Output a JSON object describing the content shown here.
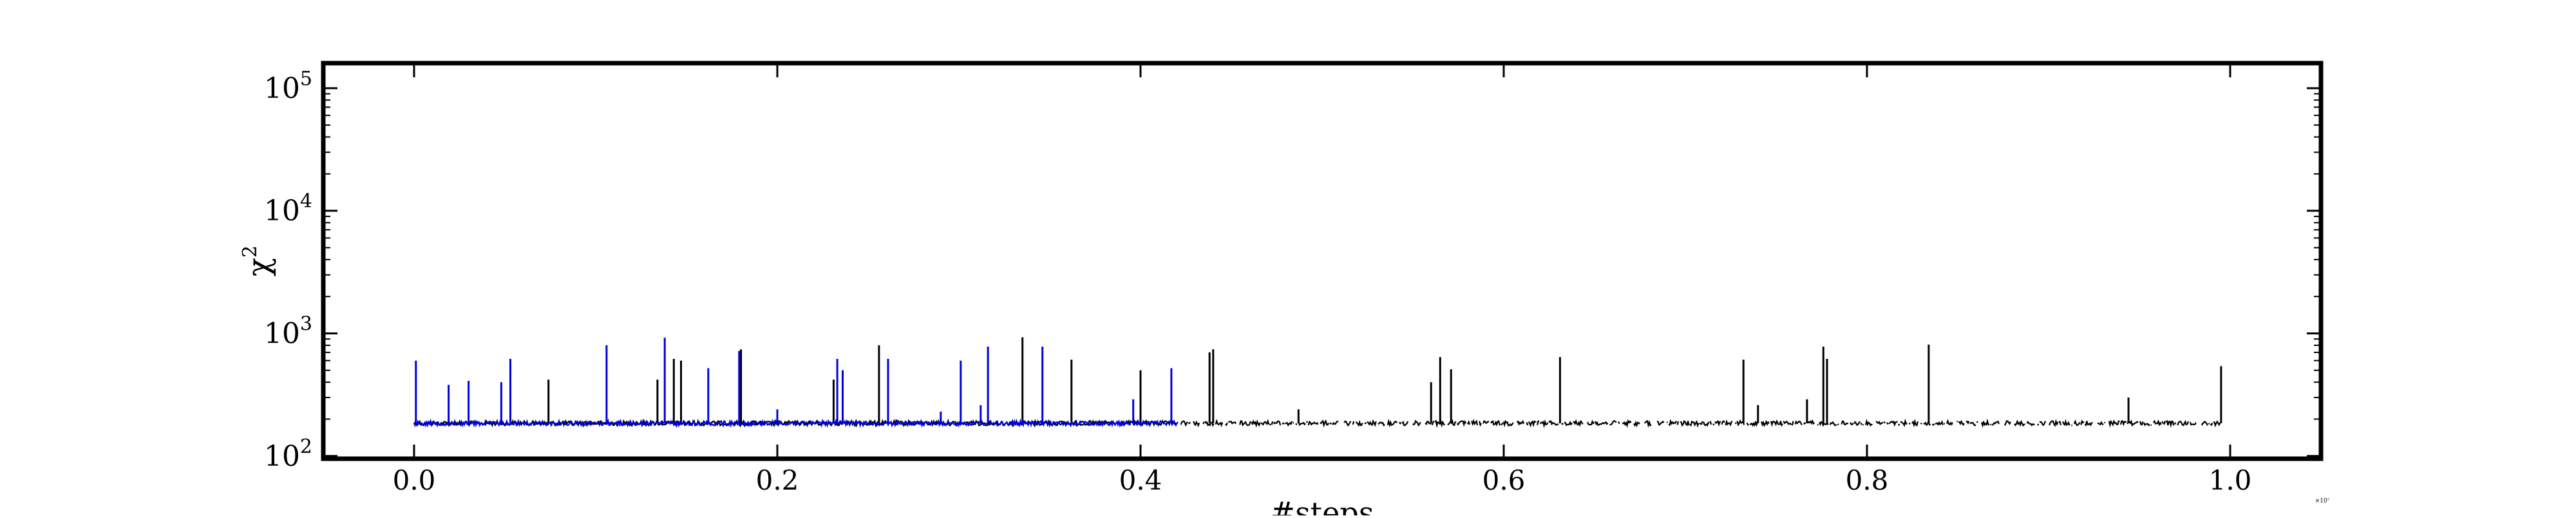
{
  "chart_data": {
    "type": "line",
    "title": "",
    "xlabel": "#steps",
    "ylabel_base": "χ",
    "ylabel_exp": "2",
    "x_scale_note": "×10⁷",
    "yscale": "log",
    "xlim": [
      -0.05,
      1.05
    ],
    "ylim": [
      95,
      160000
    ],
    "grid": false,
    "legend": "none",
    "x_ticks": [
      {
        "value": 0.0,
        "label": "0.0"
      },
      {
        "value": 0.2,
        "label": "0.2"
      },
      {
        "value": 0.4,
        "label": "0.4"
      },
      {
        "value": 0.6,
        "label": "0.6"
      },
      {
        "value": 0.8,
        "label": "0.8"
      },
      {
        "value": 1.0,
        "label": "1.0"
      }
    ],
    "y_ticks": [
      {
        "value": 100,
        "base": "10",
        "exp": "2"
      },
      {
        "value": 1000,
        "base": "10",
        "exp": "3"
      },
      {
        "value": 10000,
        "base": "10",
        "exp": "4"
      },
      {
        "value": 100000,
        "base": "10",
        "exp": "5"
      }
    ],
    "series": [
      {
        "color": "#0000dd",
        "x_range": [
          0.0,
          0.42
        ],
        "baseline": 185,
        "spikes": [
          {
            "x": 0.001,
            "y": 600
          },
          {
            "x": 0.019,
            "y": 380
          },
          {
            "x": 0.03,
            "y": 410
          },
          {
            "x": 0.048,
            "y": 400
          },
          {
            "x": 0.053,
            "y": 620
          },
          {
            "x": 0.106,
            "y": 800
          },
          {
            "x": 0.138,
            "y": 920
          },
          {
            "x": 0.162,
            "y": 520
          },
          {
            "x": 0.179,
            "y": 720
          },
          {
            "x": 0.2,
            "y": 240
          },
          {
            "x": 0.233,
            "y": 620
          },
          {
            "x": 0.236,
            "y": 500
          },
          {
            "x": 0.261,
            "y": 620
          },
          {
            "x": 0.29,
            "y": 230
          },
          {
            "x": 0.301,
            "y": 600
          },
          {
            "x": 0.312,
            "y": 260
          },
          {
            "x": 0.316,
            "y": 780
          },
          {
            "x": 0.346,
            "y": 780
          },
          {
            "x": 0.396,
            "y": 290
          },
          {
            "x": 0.417,
            "y": 520
          }
        ]
      },
      {
        "color": "#000000",
        "x_range": [
          0.0,
          0.995
        ],
        "baseline": 185,
        "spikes": [
          {
            "x": 0.074,
            "y": 420
          },
          {
            "x": 0.134,
            "y": 420
          },
          {
            "x": 0.143,
            "y": 620
          },
          {
            "x": 0.147,
            "y": 600
          },
          {
            "x": 0.18,
            "y": 740
          },
          {
            "x": 0.231,
            "y": 420
          },
          {
            "x": 0.256,
            "y": 800
          },
          {
            "x": 0.335,
            "y": 930
          },
          {
            "x": 0.362,
            "y": 610
          },
          {
            "x": 0.4,
            "y": 500
          },
          {
            "x": 0.438,
            "y": 700
          },
          {
            "x": 0.44,
            "y": 740
          },
          {
            "x": 0.487,
            "y": 240
          },
          {
            "x": 0.56,
            "y": 400
          },
          {
            "x": 0.565,
            "y": 640
          },
          {
            "x": 0.571,
            "y": 510
          },
          {
            "x": 0.631,
            "y": 640
          },
          {
            "x": 0.732,
            "y": 610
          },
          {
            "x": 0.74,
            "y": 260
          },
          {
            "x": 0.767,
            "y": 290
          },
          {
            "x": 0.776,
            "y": 780
          },
          {
            "x": 0.778,
            "y": 620
          },
          {
            "x": 0.834,
            "y": 810
          },
          {
            "x": 0.944,
            "y": 300
          },
          {
            "x": 0.995,
            "y": 540
          }
        ]
      }
    ]
  }
}
